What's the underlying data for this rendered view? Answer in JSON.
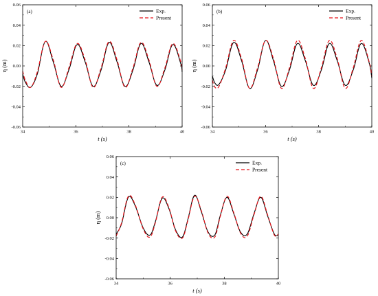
{
  "chart_data": [
    {
      "type": "line",
      "panel_label": "(a)",
      "xlabel": "t (s)",
      "ylabel": "η (m)",
      "xlim": [
        34,
        40
      ],
      "ylim": [
        -0.06,
        0.06
      ],
      "xticks": [
        "34",
        "36",
        "38",
        "40"
      ],
      "yticks": [
        "-0.06",
        "-0.04",
        "-0.02",
        "0.00",
        "0.02",
        "0.04",
        "0.06"
      ],
      "legend_position": "top-right",
      "series": [
        {
          "name": "Exp.",
          "color": "#000000",
          "dash": "solid",
          "x": [
            34.0,
            34.1,
            34.3,
            34.55,
            34.85,
            35.15,
            35.45,
            35.75,
            36.05,
            36.35,
            36.65,
            36.95,
            37.25,
            37.55,
            37.85,
            38.15,
            38.45,
            38.75,
            39.05,
            39.35,
            39.65,
            39.95,
            40.0
          ],
          "y": [
            -0.008,
            -0.016,
            -0.021,
            -0.008,
            0.024,
            0.004,
            -0.02,
            -0.003,
            0.021,
            0.004,
            -0.02,
            -0.004,
            0.023,
            0.004,
            -0.02,
            -0.004,
            0.022,
            0.004,
            -0.019,
            -0.004,
            0.021,
            0.002,
            -0.006
          ]
        },
        {
          "name": "Present",
          "color": "#e8141b",
          "dash": "dashed",
          "x": [
            34.0,
            34.1,
            34.3,
            34.55,
            34.85,
            35.15,
            35.45,
            35.75,
            36.05,
            36.35,
            36.65,
            36.95,
            37.25,
            37.55,
            37.85,
            38.15,
            38.45,
            38.75,
            39.05,
            39.35,
            39.65,
            39.95,
            40.0
          ],
          "y": [
            -0.005,
            -0.014,
            -0.021,
            -0.006,
            0.024,
            0.006,
            -0.021,
            -0.001,
            0.022,
            0.006,
            -0.021,
            -0.002,
            0.024,
            0.006,
            -0.021,
            -0.002,
            0.023,
            0.006,
            -0.02,
            -0.002,
            0.022,
            0.004,
            -0.004
          ]
        }
      ]
    },
    {
      "type": "line",
      "panel_label": "(b)",
      "xlabel": "t (s)",
      "ylabel": "η (m)",
      "xlim": [
        34,
        40
      ],
      "ylim": [
        -0.06,
        0.06
      ],
      "xticks": [
        "34",
        "36",
        "38",
        "40"
      ],
      "yticks": [
        "-0.06",
        "-0.04",
        "-0.02",
        "0.00",
        "0.02",
        "0.04",
        "0.06"
      ],
      "legend_position": "top-right",
      "series": [
        {
          "name": "Exp.",
          "color": "#000000",
          "dash": "solid",
          "x": [
            34.0,
            34.1,
            34.25,
            34.5,
            34.8,
            35.1,
            35.4,
            35.7,
            36.0,
            36.3,
            36.6,
            36.9,
            37.2,
            37.5,
            37.8,
            38.1,
            38.4,
            38.7,
            39.0,
            39.3,
            39.6,
            39.9,
            40.0
          ],
          "y": [
            -0.01,
            -0.017,
            -0.018,
            -0.004,
            0.023,
            0.005,
            -0.022,
            -0.004,
            0.025,
            0.005,
            -0.02,
            -0.004,
            0.022,
            0.005,
            -0.019,
            -0.004,
            0.022,
            0.005,
            -0.019,
            -0.004,
            0.022,
            0.003,
            -0.012
          ]
        },
        {
          "name": "Present",
          "color": "#e8141b",
          "dash": "dashed",
          "x": [
            34.0,
            34.1,
            34.25,
            34.5,
            34.8,
            35.1,
            35.4,
            35.7,
            36.0,
            36.3,
            36.6,
            36.9,
            37.2,
            37.5,
            37.8,
            38.1,
            38.4,
            38.7,
            39.0,
            39.3,
            39.6,
            39.9,
            40.0
          ],
          "y": [
            -0.014,
            -0.021,
            -0.02,
            -0.002,
            0.025,
            0.007,
            -0.022,
            -0.002,
            0.025,
            0.007,
            -0.022,
            -0.002,
            0.025,
            0.007,
            -0.022,
            -0.002,
            0.025,
            0.007,
            -0.022,
            -0.002,
            0.025,
            0.004,
            -0.01
          ]
        }
      ]
    },
    {
      "type": "line",
      "panel_label": "(c)",
      "xlabel": "t (s)",
      "ylabel": "η (m)",
      "xlim": [
        34,
        40
      ],
      "ylim": [
        -0.06,
        0.06
      ],
      "xticks": [
        "34",
        "36",
        "38",
        "40"
      ],
      "yticks": [
        "-0.06",
        "-0.04",
        "-0.02",
        "0.00",
        "0.02",
        "0.04",
        "0.06"
      ],
      "legend_position": "top-right",
      "series": [
        {
          "name": "Exp.",
          "color": "#000000",
          "dash": "solid",
          "x": [
            34.0,
            34.2,
            34.45,
            34.7,
            35.0,
            35.25,
            35.45,
            35.7,
            35.95,
            36.2,
            36.45,
            36.65,
            36.9,
            37.15,
            37.4,
            37.65,
            37.85,
            38.1,
            38.35,
            38.6,
            38.85,
            39.1,
            39.35,
            39.6,
            39.85,
            40.0
          ],
          "y": [
            -0.016,
            -0.006,
            0.02,
            0.012,
            -0.01,
            -0.017,
            -0.004,
            0.019,
            0.009,
            -0.012,
            -0.019,
            -0.002,
            0.022,
            0.006,
            -0.014,
            -0.017,
            0.002,
            0.02,
            0.004,
            -0.014,
            -0.016,
            0.004,
            0.02,
            0.002,
            -0.016,
            -0.017
          ]
        },
        {
          "name": "Present",
          "color": "#e8141b",
          "dash": "dashed",
          "x": [
            34.0,
            34.2,
            34.45,
            34.7,
            35.0,
            35.25,
            35.45,
            35.7,
            35.95,
            36.2,
            36.45,
            36.65,
            36.9,
            37.15,
            37.4,
            37.65,
            37.85,
            38.1,
            38.35,
            38.6,
            38.85,
            39.1,
            39.35,
            39.6,
            39.85,
            40.0
          ],
          "y": [
            -0.018,
            -0.005,
            0.021,
            0.013,
            -0.011,
            -0.019,
            -0.005,
            0.02,
            0.01,
            -0.013,
            -0.02,
            -0.003,
            0.021,
            0.007,
            -0.015,
            -0.019,
            0.001,
            0.021,
            0.005,
            -0.015,
            -0.018,
            0.003,
            0.021,
            0.003,
            -0.017,
            -0.016
          ]
        }
      ]
    }
  ]
}
